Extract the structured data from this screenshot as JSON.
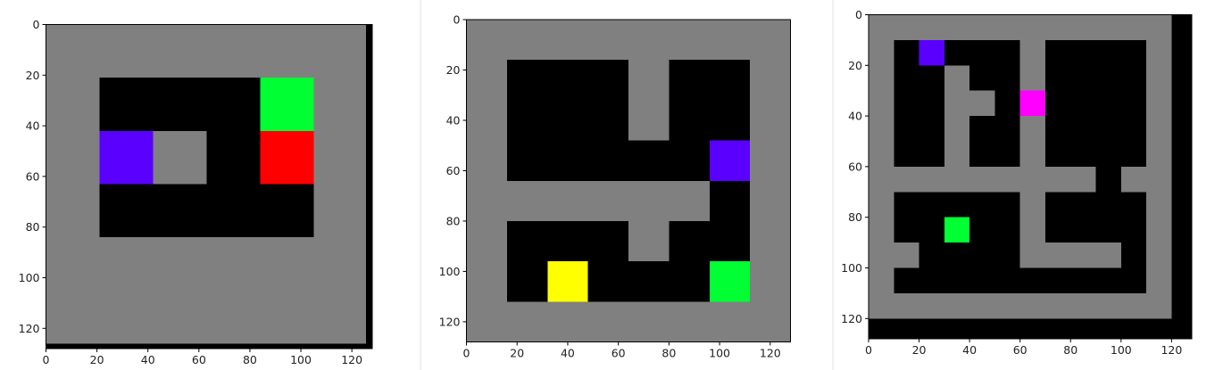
{
  "chart_data": [
    {
      "type": "heatmap",
      "xlim": [
        0,
        128
      ],
      "ylim": [
        128,
        0
      ],
      "xticks": [
        "0",
        "20",
        "40",
        "60",
        "80",
        "100",
        "120"
      ],
      "yticks": [
        "0",
        "20",
        "40",
        "60",
        "80",
        "100",
        "120"
      ],
      "background_color": "#808080",
      "cells": [
        {
          "x": [
            125.5,
            128
          ],
          "y": [
            0,
            128
          ],
          "color": "#000000"
        },
        {
          "x": [
            0,
            128
          ],
          "y": [
            126,
            128
          ],
          "color": "#000000"
        },
        {
          "x": [
            21,
            105
          ],
          "y": [
            21,
            84
          ],
          "color": "#000000"
        },
        {
          "x": [
            84,
            105
          ],
          "y": [
            21,
            42
          ],
          "color": "#00ff33"
        },
        {
          "x": [
            84,
            105
          ],
          "y": [
            42,
            63
          ],
          "color": "#ff0000"
        },
        {
          "x": [
            21,
            42
          ],
          "y": [
            42,
            63
          ],
          "color": "#5a00ff"
        },
        {
          "x": [
            42,
            63
          ],
          "y": [
            42,
            63
          ],
          "color": "#808080"
        }
      ]
    },
    {
      "type": "heatmap",
      "xlim": [
        0,
        128
      ],
      "ylim": [
        128,
        0
      ],
      "xticks": [
        "0",
        "20",
        "40",
        "60",
        "80",
        "100",
        "120"
      ],
      "yticks": [
        "0",
        "20",
        "40",
        "60",
        "80",
        "100",
        "120"
      ],
      "background_color": "#808080",
      "cells": [
        {
          "x": [
            16,
            64
          ],
          "y": [
            16,
            64
          ],
          "color": "#000000"
        },
        {
          "x": [
            64,
            80
          ],
          "y": [
            48,
            64
          ],
          "color": "#000000"
        },
        {
          "x": [
            80,
            112
          ],
          "y": [
            16,
            64
          ],
          "color": "#000000"
        },
        {
          "x": [
            96,
            112
          ],
          "y": [
            64,
            80
          ],
          "color": "#000000"
        },
        {
          "x": [
            16,
            64
          ],
          "y": [
            80,
            112
          ],
          "color": "#000000"
        },
        {
          "x": [
            64,
            80
          ],
          "y": [
            96,
            112
          ],
          "color": "#000000"
        },
        {
          "x": [
            80,
            112
          ],
          "y": [
            80,
            112
          ],
          "color": "#000000"
        },
        {
          "x": [
            96,
            112
          ],
          "y": [
            48,
            64
          ],
          "color": "#5a00ff"
        },
        {
          "x": [
            96,
            112
          ],
          "y": [
            96,
            112
          ],
          "color": "#00ff33"
        },
        {
          "x": [
            32,
            48
          ],
          "y": [
            96,
            112
          ],
          "color": "#ffff00"
        }
      ]
    },
    {
      "type": "heatmap",
      "xlim": [
        0,
        128
      ],
      "ylim": [
        128,
        0
      ],
      "xticks": [
        "0",
        "20",
        "40",
        "60",
        "80",
        "100",
        "120"
      ],
      "yticks": [
        "0",
        "20",
        "40",
        "60",
        "80",
        "100",
        "120"
      ],
      "background_color": "#808080",
      "cells": [
        {
          "x": [
            120,
            128
          ],
          "y": [
            0,
            128
          ],
          "color": "#000000"
        },
        {
          "x": [
            0,
            128
          ],
          "y": [
            120,
            128
          ],
          "color": "#000000"
        },
        {
          "x": [
            10,
            60
          ],
          "y": [
            10,
            60
          ],
          "color": "#000000"
        },
        {
          "x": [
            70,
            110
          ],
          "y": [
            10,
            60
          ],
          "color": "#000000"
        },
        {
          "x": [
            90,
            100
          ],
          "y": [
            60,
            70
          ],
          "color": "#000000"
        },
        {
          "x": [
            10,
            60
          ],
          "y": [
            70,
            110
          ],
          "color": "#000000"
        },
        {
          "x": [
            60,
            110
          ],
          "y": [
            100,
            110
          ],
          "color": "#000000"
        },
        {
          "x": [
            70,
            110
          ],
          "y": [
            70,
            90
          ],
          "color": "#000000"
        },
        {
          "x": [
            100,
            110
          ],
          "y": [
            90,
            100
          ],
          "color": "#000000"
        },
        {
          "x": [
            30,
            40
          ],
          "y": [
            20,
            30
          ],
          "color": "#808080"
        },
        {
          "x": [
            30,
            50
          ],
          "y": [
            30,
            40
          ],
          "color": "#808080"
        },
        {
          "x": [
            30,
            40
          ],
          "y": [
            40,
            60
          ],
          "color": "#808080"
        },
        {
          "x": [
            60,
            70
          ],
          "y": [
            10,
            60
          ],
          "color": "#808080"
        },
        {
          "x": [
            10,
            20
          ],
          "y": [
            90,
            100
          ],
          "color": "#808080"
        },
        {
          "x": [
            20,
            30
          ],
          "y": [
            10,
            20
          ],
          "color": "#5a00ff"
        },
        {
          "x": [
            60,
            70
          ],
          "y": [
            30,
            40
          ],
          "color": "#ff00ff"
        },
        {
          "x": [
            30,
            40
          ],
          "y": [
            80,
            90
          ],
          "color": "#00ff33"
        }
      ]
    }
  ]
}
